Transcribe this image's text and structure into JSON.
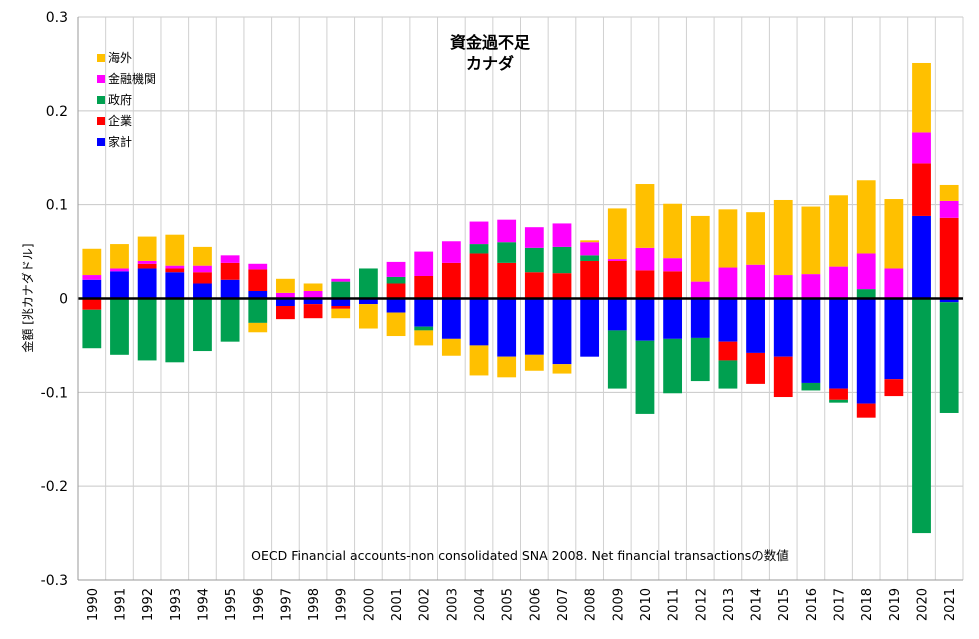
{
  "chart_data": {
    "type": "bar",
    "stacked": true,
    "title": "資金過不足",
    "subtitle": "カナダ",
    "ylabel": "金額 [兆カナダドル]",
    "xlabel": "",
    "ylim": [
      -0.3,
      0.3
    ],
    "yticks": [
      -0.3,
      -0.2,
      -0.1,
      0,
      0.1,
      0.2,
      0.3
    ],
    "ytick_labels": [
      "-0.3",
      "-0.2",
      "-0.1",
      "0",
      "0.1",
      "0.2",
      "0.3"
    ],
    "grid": true,
    "legend_position": "top-left",
    "annotation": "OECD Financial accounts-non consolidated SNA 2008. Net financial transactionsの数値",
    "categories": [
      "1990",
      "1991",
      "1992",
      "1993",
      "1994",
      "1995",
      "1996",
      "1997",
      "1998",
      "1999",
      "2000",
      "2001",
      "2002",
      "2003",
      "2004",
      "2005",
      "2006",
      "2007",
      "2008",
      "2009",
      "2010",
      "2011",
      "2012",
      "2013",
      "2014",
      "2015",
      "2016",
      "2017",
      "2018",
      "2019",
      "2020",
      "2021"
    ],
    "series": [
      {
        "name": "家計",
        "color": "#0000ff",
        "values": [
          0.02,
          0.029,
          0.032,
          0.028,
          0.016,
          0.02,
          0.008,
          -0.008,
          -0.006,
          -0.008,
          -0.006,
          -0.015,
          -0.03,
          -0.043,
          -0.05,
          -0.062,
          -0.06,
          -0.07,
          -0.062,
          -0.034,
          -0.045,
          -0.043,
          -0.042,
          -0.046,
          -0.058,
          -0.062,
          -0.09,
          -0.096,
          -0.112,
          -0.086,
          0.088,
          -0.004
        ]
      },
      {
        "name": "企業",
        "color": "#ff0000",
        "values": [
          -0.012,
          0.0,
          0.005,
          0.004,
          0.012,
          0.018,
          0.023,
          -0.014,
          -0.015,
          -0.003,
          0.0,
          0.016,
          0.024,
          0.038,
          0.048,
          0.038,
          0.028,
          0.027,
          0.04,
          0.04,
          0.03,
          0.029,
          0.0,
          -0.02,
          -0.033,
          -0.043,
          0.0,
          -0.012,
          -0.015,
          -0.018,
          0.056,
          0.086
        ]
      },
      {
        "name": "政府",
        "color": "#00a050",
        "values": [
          -0.041,
          -0.06,
          -0.066,
          -0.068,
          -0.056,
          -0.046,
          -0.026,
          0.0,
          0.0,
          0.018,
          0.032,
          0.007,
          -0.004,
          0.0,
          0.01,
          0.022,
          0.026,
          0.028,
          0.006,
          -0.062,
          -0.078,
          -0.058,
          -0.046,
          -0.03,
          0.0,
          0.0,
          -0.008,
          -0.003,
          0.01,
          0.0,
          -0.25,
          -0.118
        ]
      },
      {
        "name": "金融機関",
        "color": "#ff00ff",
        "values": [
          0.005,
          0.003,
          0.003,
          0.003,
          0.007,
          0.008,
          0.006,
          0.006,
          0.008,
          0.003,
          0.0,
          0.016,
          0.026,
          0.023,
          0.024,
          0.024,
          0.022,
          0.025,
          0.014,
          0.002,
          0.024,
          0.014,
          0.018,
          0.033,
          0.036,
          0.025,
          0.026,
          0.034,
          0.038,
          0.032,
          0.033,
          0.018
        ]
      },
      {
        "name": "海外",
        "color": "#ffc000",
        "values": [
          0.028,
          0.026,
          0.026,
          0.033,
          0.02,
          0.0,
          -0.01,
          0.015,
          0.008,
          -0.01,
          -0.026,
          -0.025,
          -0.016,
          -0.018,
          -0.032,
          -0.022,
          -0.017,
          -0.01,
          0.002,
          0.054,
          0.068,
          0.058,
          0.07,
          0.062,
          0.056,
          0.08,
          0.072,
          0.076,
          0.078,
          0.074,
          0.074,
          0.017
        ]
      }
    ],
    "legend_order": [
      "海外",
      "金融機関",
      "政府",
      "企業",
      "家計"
    ]
  }
}
